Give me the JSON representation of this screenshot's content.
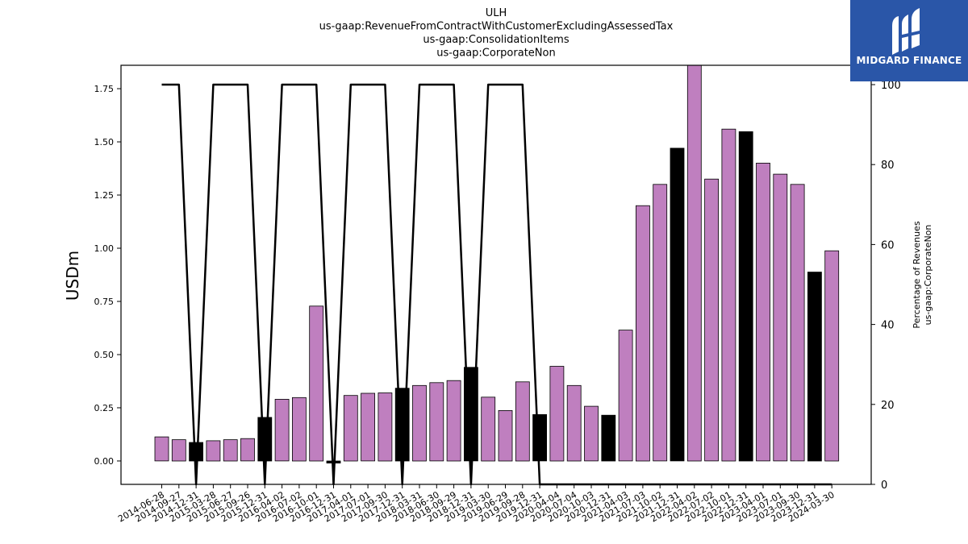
{
  "chart_data": {
    "type": "bar",
    "title_lines": [
      "ULH",
      "us-gaap:RevenueFromContractWithCustomerExcludingAssessedTax",
      "us-gaap:ConsolidationItems",
      "us-gaap:CorporateNon"
    ],
    "ylabel": "USDm",
    "y2label_lines": [
      "Percentage of Revenues",
      "us-gaap:CorporateNon"
    ],
    "ylim": [
      -0.11,
      1.86
    ],
    "y2lim": [
      0,
      100
    ],
    "yticks": [
      "0.00",
      "0.25",
      "0.50",
      "0.75",
      "1.00",
      "1.25",
      "1.50",
      "1.75"
    ],
    "y2ticks": [
      "0",
      "20",
      "40",
      "60",
      "80",
      "100"
    ],
    "grid": false,
    "colors": {
      "bar_default": "#bf7fbf",
      "bar_highlight": "#000000",
      "line": "#000000"
    },
    "categories": [
      "2014-06-28",
      "2014-09-27",
      "2014-12-31",
      "2015-03-28",
      "2015-06-27",
      "2015-09-26",
      "2015-12-31",
      "2016-04-02",
      "2016-07-02",
      "2016-10-01",
      "2016-12-31",
      "2017-04-01",
      "2017-07-01",
      "2017-09-30",
      "2017-12-31",
      "2018-03-31",
      "2018-06-30",
      "2018-09-29",
      "2018-12-31",
      "2019-03-30",
      "2019-06-29",
      "2019-09-28",
      "2019-12-31",
      "2020-04-04",
      "2020-07-04",
      "2020-10-03",
      "2020-12-31",
      "2021-04-03",
      "2021-07-03",
      "2021-10-02",
      "2021-12-31",
      "2022-04-02",
      "2022-07-02",
      "2022-10-01",
      "2022-12-31",
      "2023-04-01",
      "2023-07-01",
      "2023-09-30",
      "2023-12-31",
      "2024-03-30"
    ],
    "values": [
      0.113,
      0.1,
      0.087,
      0.095,
      0.1,
      0.105,
      0.205,
      0.29,
      0.298,
      0.728,
      -0.01,
      0.308,
      0.318,
      0.32,
      0.342,
      0.355,
      0.368,
      0.378,
      0.44,
      0.3,
      0.237,
      0.372,
      0.218,
      0.445,
      0.355,
      0.257,
      0.215,
      0.615,
      1.2,
      1.3,
      1.47,
      1.86,
      1.325,
      1.56,
      1.548,
      1.4,
      1.348,
      1.3,
      0.888,
      0.988
    ],
    "highlight": [
      false,
      false,
      true,
      false,
      false,
      false,
      true,
      false,
      false,
      false,
      true,
      false,
      false,
      false,
      true,
      false,
      false,
      false,
      true,
      false,
      false,
      false,
      true,
      false,
      false,
      false,
      true,
      false,
      false,
      false,
      true,
      false,
      false,
      false,
      true,
      false,
      false,
      false,
      true,
      false
    ],
    "percentage_series": [
      100,
      100,
      0,
      100,
      100,
      100,
      0,
      100,
      100,
      100,
      0,
      100,
      100,
      100,
      0,
      100,
      100,
      100,
      0,
      100,
      100,
      100,
      0,
      0,
      0,
      0,
      0,
      0,
      0,
      0,
      0,
      0,
      0,
      0,
      0,
      0,
      0,
      0,
      0,
      0
    ]
  },
  "logo": {
    "text": "MIDGARD FINANCE",
    "color": "#2a56a8"
  }
}
